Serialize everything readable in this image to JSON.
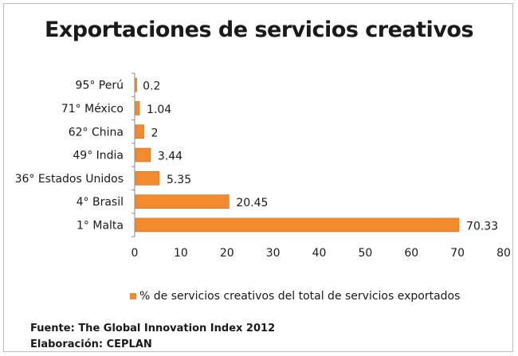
{
  "chart_data": {
    "type": "bar",
    "orientation": "horizontal",
    "title": "Exportaciones de servicios creativos",
    "categories": [
      "95°  Perú",
      "71° México",
      "62°  China",
      "49°  India",
      "36°  Estados Unidos",
      "4°   Brasil",
      "1°   Malta"
    ],
    "series": [
      {
        "name": "% de servicios creativos del total de servicios exportados",
        "values": [
          0.2,
          1.04,
          2,
          3.44,
          5.35,
          20.45,
          70.33
        ],
        "value_labels": [
          "0.2",
          "1.04",
          "2",
          "3.44",
          "5.35",
          "20.45",
          "70.33"
        ]
      }
    ],
    "xlim": [
      0,
      80
    ],
    "xticks": [
      "0",
      "10",
      "20",
      "30",
      "40",
      "50",
      "60",
      "70",
      "80"
    ],
    "xtick_values": [
      0,
      10,
      20,
      30,
      40,
      50,
      60,
      70,
      80
    ],
    "grid": false,
    "legend_position": "bottom",
    "bar_color": "#f28a2e",
    "bar_edge_color": "#c96a1a"
  },
  "footer": {
    "source": "Fuente: The Global Innovation Index 2012",
    "credit": "Elaboración: CEPLAN"
  }
}
